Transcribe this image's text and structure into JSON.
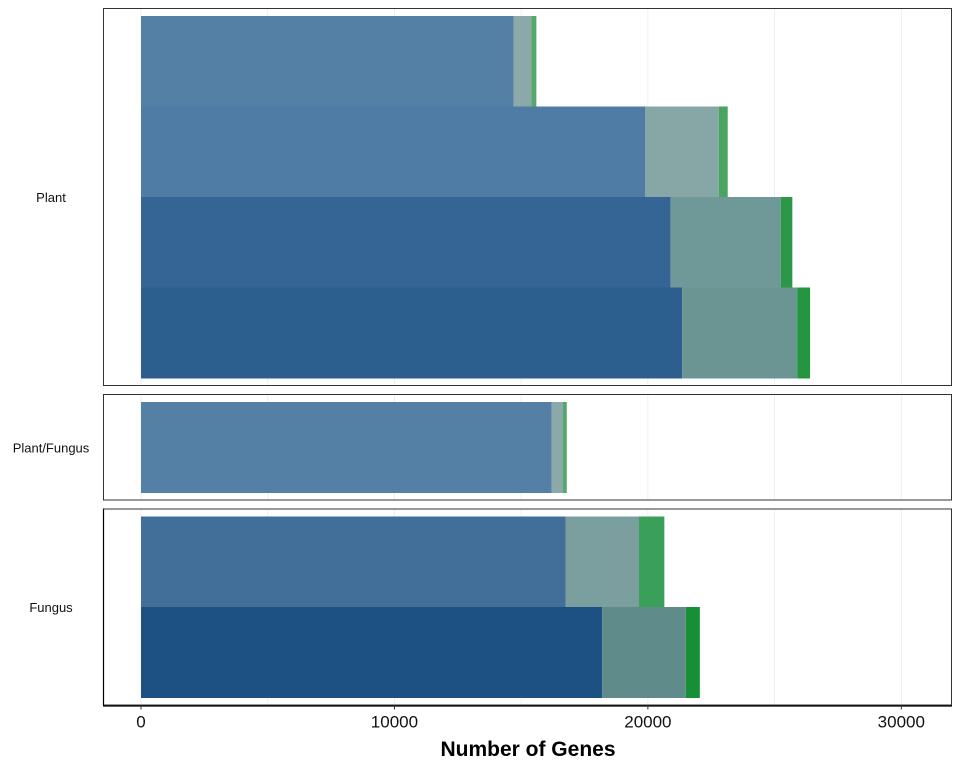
{
  "chart_data": {
    "type": "bar",
    "orientation": "horizontal",
    "stacked": true,
    "xlabel": "Number of Genes",
    "ylabel": "",
    "title": "",
    "xlim": [
      -1500,
      32000
    ],
    "x_ticks": [
      0,
      10000,
      20000,
      30000
    ],
    "x_tick_labels": [
      "0",
      "10000",
      "20000",
      "30000"
    ],
    "grid": true,
    "legend": "none",
    "facets": [
      {
        "label": "Plant",
        "bars": [
          {
            "segments": [
              14700,
              700,
              200
            ],
            "colors": [
              "#5580a6",
              "#8aa9a8",
              "#55a86a"
            ]
          },
          {
            "segments": [
              19900,
              2900,
              350
            ],
            "colors": [
              "#4f7ca4",
              "#87a7a6",
              "#4aa460"
            ]
          },
          {
            "segments": [
              20900,
              4350,
              450
            ],
            "colors": [
              "#356594",
              "#6f9998",
              "#2b9747"
            ]
          },
          {
            "segments": [
              21350,
              4550,
              500
            ],
            "colors": [
              "#2c5f8e",
              "#6a9592",
              "#249640"
            ]
          }
        ]
      },
      {
        "label": "Plant/Fungus",
        "bars": [
          {
            "segments": [
              16200,
              450,
              150
            ],
            "colors": [
              "#5580a6",
              "#8aa9a8",
              "#55a86a"
            ]
          }
        ]
      },
      {
        "label": "Fungus",
        "bars": [
          {
            "segments": [
              16750,
              2900,
              1000
            ],
            "colors": [
              "#426f99",
              "#7b9f9e",
              "#3a9f58"
            ]
          },
          {
            "segments": [
              18200,
              3300,
              550
            ],
            "colors": [
              "#1d5184",
              "#5f8c8a",
              "#168f36"
            ]
          }
        ]
      }
    ]
  }
}
